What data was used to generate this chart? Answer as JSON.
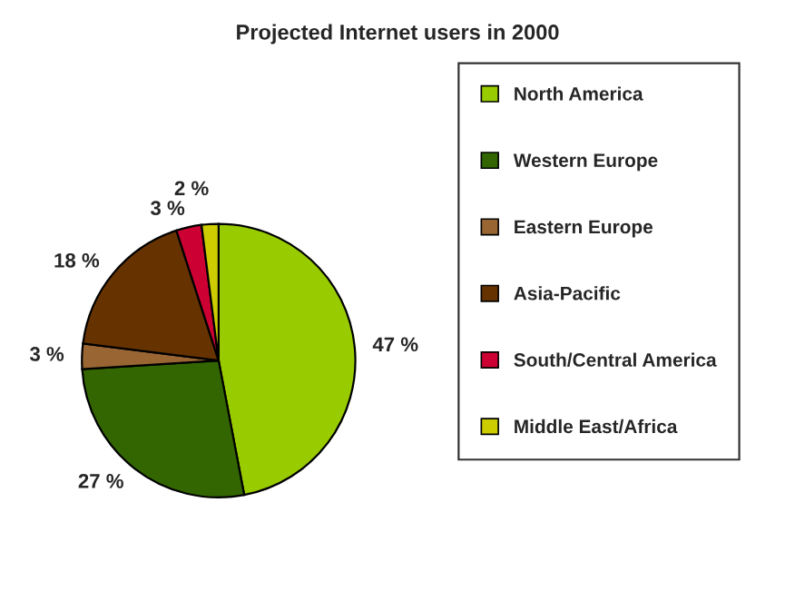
{
  "chart_data": {
    "type": "pie",
    "title": "Projected Internet users in 2000",
    "categories": [
      "North America",
      "Western Europe",
      "Eastern Europe",
      "Asia-Pacific",
      "South/Central America",
      "Middle East/Africa"
    ],
    "values": [
      47,
      27,
      3,
      18,
      3,
      2
    ],
    "value_labels": [
      "47 %",
      "27 %",
      "3 %",
      "18 %",
      "3 %",
      "2 %"
    ],
    "colors": [
      "#99cc00",
      "#336600",
      "#996633",
      "#663300",
      "#cc0033",
      "#cccc00"
    ],
    "legend": "right"
  }
}
